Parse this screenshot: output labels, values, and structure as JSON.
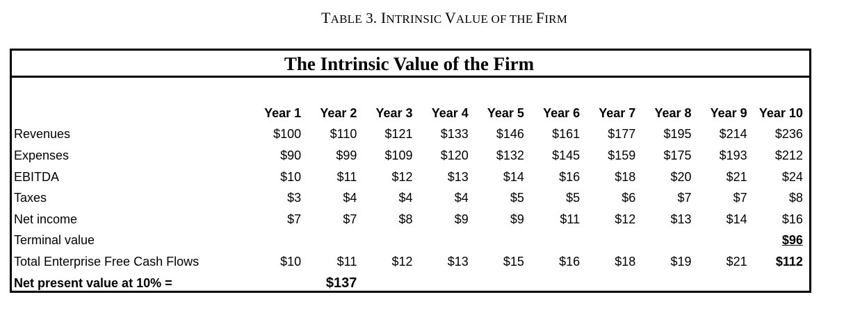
{
  "caption": {
    "prefix_big": "T",
    "prefix_small": "ABLE",
    "number": " 3. ",
    "w1_big": "I",
    "w1_small": "NTRINSIC ",
    "w2_big": "V",
    "w2_small": "ALUE OF THE ",
    "w3_big": "F",
    "w3_small": "IRM"
  },
  "title": "The Intrinsic Value of the Firm",
  "years": [
    "Year 1",
    "Year 2",
    "Year 3",
    "Year 4",
    "Year 5",
    "Year 6",
    "Year 7",
    "Year 8",
    "Year 9",
    "Year 10"
  ],
  "rows": [
    {
      "label": "Revenues",
      "values": [
        "$100",
        "$110",
        "$121",
        "$133",
        "$146",
        "$161",
        "$177",
        "$195",
        "$214",
        "$236"
      ]
    },
    {
      "label": "Expenses",
      "values": [
        "$90",
        "$99",
        "$109",
        "$120",
        "$132",
        "$145",
        "$159",
        "$175",
        "$193",
        "$212"
      ]
    },
    {
      "label": "EBITDA",
      "values": [
        "$10",
        "$11",
        "$12",
        "$13",
        "$14",
        "$16",
        "$18",
        "$20",
        "$21",
        "$24"
      ]
    },
    {
      "label": "Taxes",
      "values": [
        "$3",
        "$4",
        "$4",
        "$4",
        "$5",
        "$5",
        "$6",
        "$7",
        "$7",
        "$8"
      ]
    },
    {
      "label": "Net income",
      "values": [
        "$7",
        "$7",
        "$8",
        "$9",
        "$9",
        "$11",
        "$12",
        "$13",
        "$14",
        "$16"
      ]
    },
    {
      "label": "Terminal value",
      "values": [
        "",
        "",
        "",
        "",
        "",
        "",
        "",
        "",
        "",
        "$96"
      ]
    },
    {
      "label": "Total Enterprise Free Cash Flows",
      "values": [
        "$10",
        "$11",
        "$12",
        "$13",
        "$15",
        "$16",
        "$18",
        "$19",
        "$21",
        "$112"
      ]
    }
  ],
  "npv": {
    "label": "Net present value at 10% =",
    "value": "$137"
  }
}
